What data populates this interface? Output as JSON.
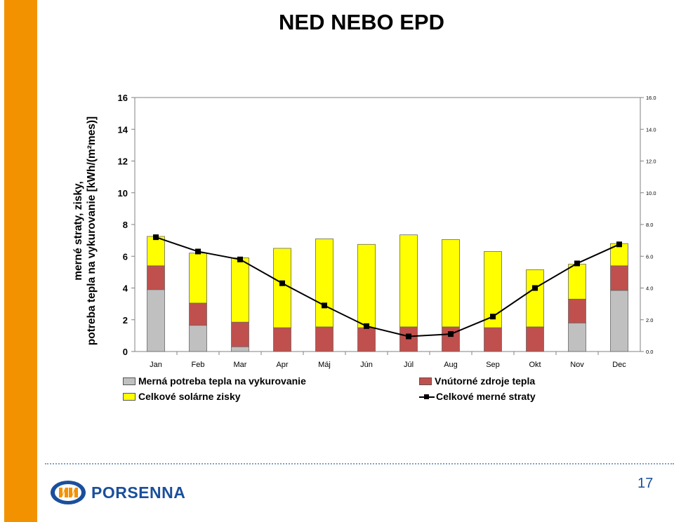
{
  "slide": {
    "title": "NED NEBO EPD",
    "page_number": "17",
    "logo_text": "PORSENNA"
  },
  "colors": {
    "side_bar": "#f39200",
    "heating": "#c0c0c0",
    "internal": "#c0504d",
    "solar": "#ffff00",
    "line": "#000000",
    "logo_blue": "#1a4f9c",
    "logo_orange": "#f39200"
  },
  "chart_data": {
    "type": "bar",
    "stacked": true,
    "title": "",
    "xlabel": "",
    "ylabel_lines": [
      "merné straty, zisky,",
      "potreba tepla na vykurovanie [kWh/(m²mes)]"
    ],
    "categories": [
      "Jan",
      "Feb",
      "Mar",
      "Apr",
      "Máj",
      "Jún",
      "Júl",
      "Aug",
      "Sep",
      "Okt",
      "Nov",
      "Dec"
    ],
    "ylim": [
      0,
      16
    ],
    "y_ticks": [
      0,
      2,
      4,
      6,
      8,
      10,
      12,
      14,
      16
    ],
    "y_tick_labels": [
      "0",
      "2",
      "4",
      "6",
      "8",
      "10",
      "12",
      "14",
      "16"
    ],
    "y2_tick_labels": [
      "0.0",
      "2.0",
      "4.0",
      "6.0",
      "8.0",
      "10.0",
      "12.0",
      "14.0",
      "16.0"
    ],
    "grid": false,
    "legend_position": "bottom",
    "series": [
      {
        "name": "Merná potreba tepla na vykurovanie",
        "type": "bar",
        "color": "#c0c0c0",
        "values": [
          3.9,
          1.65,
          0.3,
          0,
          0,
          0,
          0,
          0,
          0,
          0,
          1.8,
          3.85
        ]
      },
      {
        "name": "Vnútorné zdroje tepla",
        "type": "bar",
        "color": "#c0504d",
        "values": [
          1.5,
          1.4,
          1.55,
          1.5,
          1.55,
          1.5,
          1.55,
          1.55,
          1.5,
          1.55,
          1.5,
          1.55
        ]
      },
      {
        "name": "Celkové solárne zisky",
        "type": "bar",
        "color": "#ffff00",
        "values": [
          1.85,
          3.15,
          4.05,
          5.0,
          5.55,
          5.25,
          5.8,
          5.5,
          4.8,
          3.6,
          2.2,
          1.4
        ]
      },
      {
        "name": "Celkové merné straty",
        "type": "line",
        "color": "#000000",
        "values": [
          7.2,
          6.3,
          5.8,
          4.3,
          2.9,
          1.6,
          0.95,
          1.1,
          2.2,
          4.0,
          5.55,
          6.75
        ]
      }
    ]
  }
}
